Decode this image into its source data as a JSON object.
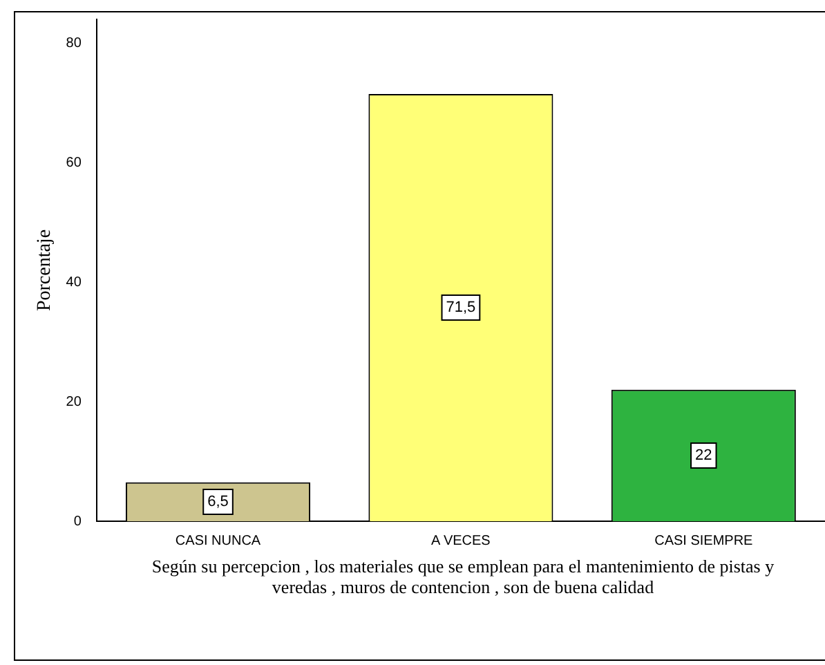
{
  "chart_data": {
    "type": "bar",
    "categories": [
      "CASI NUNCA",
      "A VECES",
      "CASI SIEMPRE"
    ],
    "values": [
      6.5,
      71.5,
      22
    ],
    "value_labels": [
      "6,5",
      "71,5",
      "22"
    ],
    "colors": [
      "#cdc58f",
      "#ffff77",
      "#2eb340"
    ],
    "ylabel": "Porcentaje",
    "xlabel": "Según su percepcion , los materiales que se emplean para el mantenimiento de pistas y veredas , muros de contencion , son de buena calidad",
    "ylim": [
      0,
      84
    ],
    "yticks": [
      0,
      20,
      40,
      60,
      80
    ],
    "grid": false,
    "legend": false
  }
}
